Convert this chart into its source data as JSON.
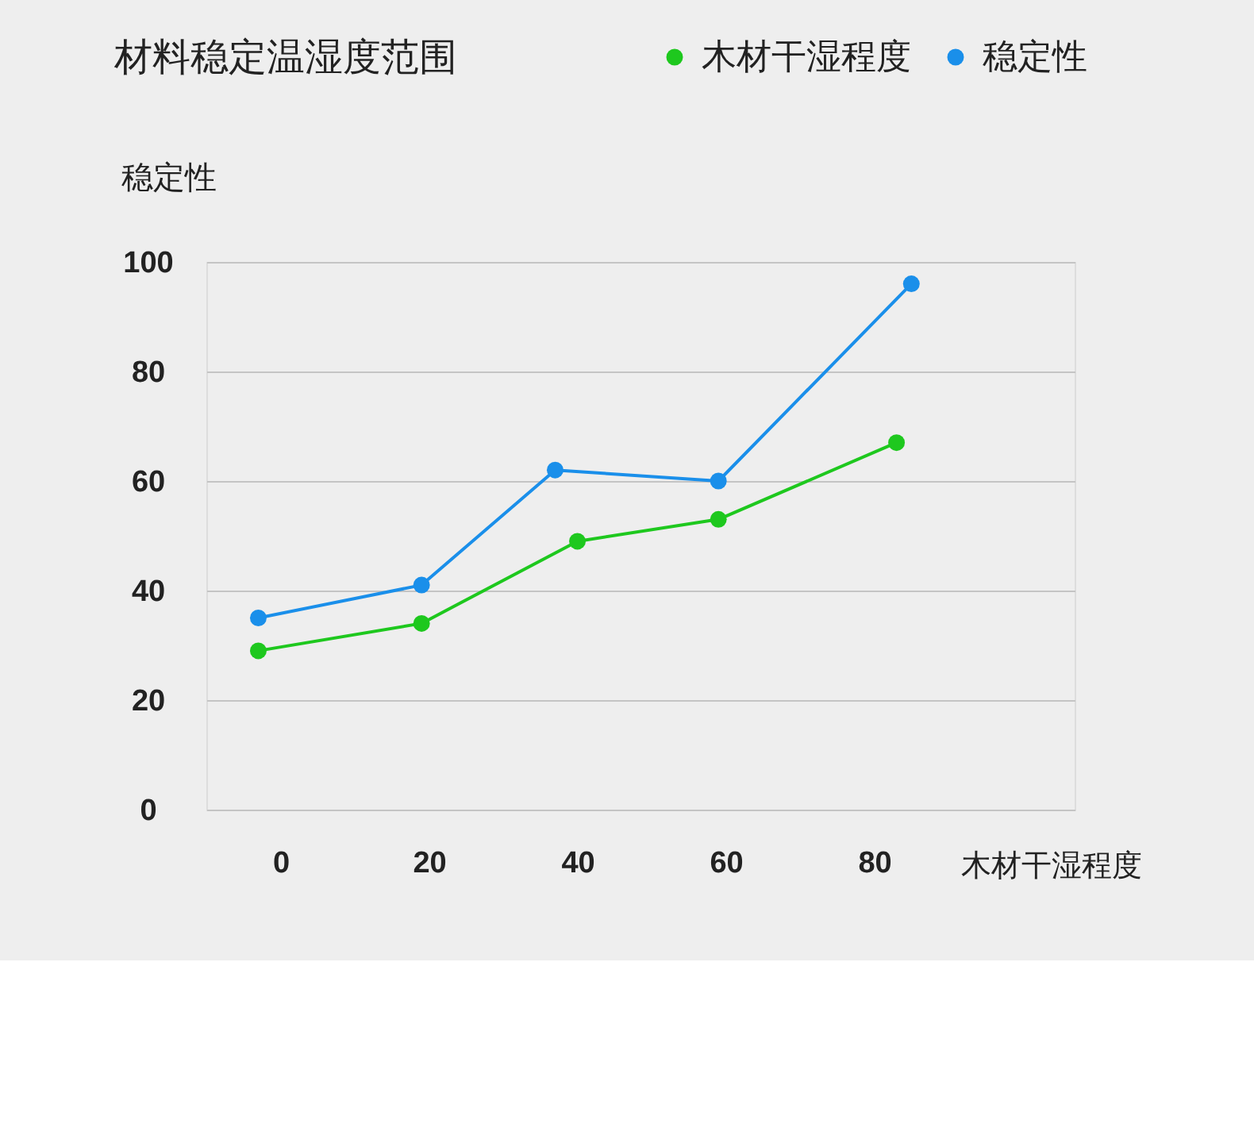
{
  "chart_data": {
    "type": "line",
    "title": "材料稳定温湿度范围",
    "xlabel": "木材干湿程度",
    "ylabel": "稳定性",
    "series": [
      {
        "name": "木材干湿程度",
        "color": "#1ec81e",
        "x": [
          -3,
          19,
          40,
          59,
          83
        ],
        "values": [
          29,
          34,
          49,
          53,
          67
        ]
      },
      {
        "name": "稳定性",
        "color": "#1a8fea",
        "x": [
          -3,
          19,
          37,
          59,
          85
        ],
        "values": [
          35,
          41,
          62,
          60,
          96
        ]
      }
    ],
    "xlim": [
      -10,
      107
    ],
    "xticks": [
      0,
      20,
      40,
      60,
      80
    ],
    "ylim": [
      0,
      100
    ],
    "yticks": [
      0,
      20,
      40,
      60,
      80,
      100
    ],
    "grid": "y",
    "legend": "top right",
    "marker": "circle",
    "line_style": "solid"
  }
}
